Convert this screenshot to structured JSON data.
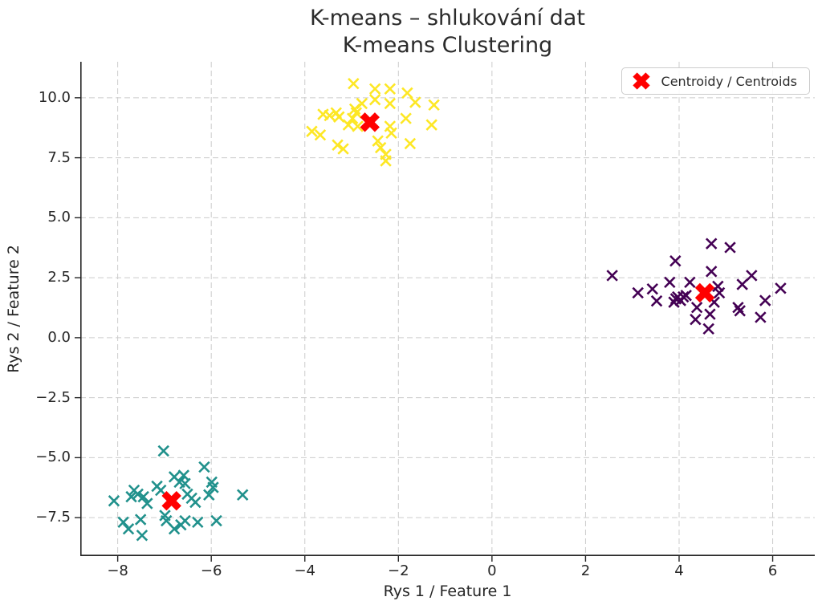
{
  "title": {
    "line1": "K-means – shlukování dat",
    "line2": "K-means Clustering"
  },
  "axes": {
    "x_label": "Rys 1 / Feature 1",
    "y_label": "Rys 2 / Feature 2"
  },
  "legend": {
    "label": "Centroidy / Centroids",
    "marker": "red-thick-x"
  },
  "chart_data": {
    "type": "scatter",
    "title": "K-means – shlukování dat\nK-means Clustering",
    "xlabel": "Rys 1 / Feature 1",
    "ylabel": "Rys 2 / Feature 2",
    "xlim": [
      -8.8,
      6.9
    ],
    "ylim": [
      -9.1,
      11.5
    ],
    "x_ticks": [
      -8,
      -6,
      -4,
      -2,
      0,
      2,
      4,
      6
    ],
    "x_tick_labels": [
      "−8",
      "−6",
      "−4",
      "−2",
      "0",
      "2",
      "4",
      "6"
    ],
    "y_ticks": [
      10.0,
      7.5,
      5.0,
      2.5,
      0.0,
      -2.5,
      -5.0,
      -7.5
    ],
    "y_tick_labels": [
      "10.0",
      "7.5",
      "5.0",
      "2.5",
      "0.0",
      "−2.5",
      "−5.0",
      "−7.5"
    ],
    "grid": "dashed",
    "legend_position": "upper right",
    "marker": "x",
    "style": {
      "background": "#ffffff",
      "grid_color": "#cccccc",
      "axis_color": "#262626",
      "text_color": "#262626"
    },
    "series": [
      {
        "name": "cluster-yellow",
        "color": "#fde725",
        "points": [
          [
            -2.96,
            10.59
          ],
          [
            -2.5,
            10.37
          ],
          [
            -2.18,
            10.37
          ],
          [
            -2.78,
            9.76
          ],
          [
            -2.5,
            9.92
          ],
          [
            -2.18,
            9.76
          ],
          [
            -1.81,
            10.2
          ],
          [
            -1.64,
            9.81
          ],
          [
            -1.24,
            9.7
          ],
          [
            -3.47,
            9.26
          ],
          [
            -3.61,
            9.31
          ],
          [
            -3.33,
            9.37
          ],
          [
            -3.27,
            9.2
          ],
          [
            -2.93,
            9.53
          ],
          [
            -2.9,
            9.37
          ],
          [
            -2.98,
            9.14
          ],
          [
            -3.07,
            8.87
          ],
          [
            -2.87,
            8.81
          ],
          [
            -3.85,
            8.6
          ],
          [
            -3.67,
            8.45
          ],
          [
            -2.18,
            8.81
          ],
          [
            -2.15,
            8.53
          ],
          [
            -1.84,
            9.14
          ],
          [
            -1.75,
            8.09
          ],
          [
            -1.29,
            8.87
          ],
          [
            -3.3,
            8.03
          ],
          [
            -3.18,
            7.87
          ],
          [
            -2.44,
            8.2
          ],
          [
            -2.38,
            7.92
          ],
          [
            -2.27,
            7.64
          ],
          [
            -2.27,
            7.37
          ]
        ]
      },
      {
        "name": "cluster-purple",
        "color": "#440154",
        "points": [
          [
            4.69,
            3.92
          ],
          [
            5.09,
            3.76
          ],
          [
            3.92,
            3.2
          ],
          [
            2.57,
            2.59
          ],
          [
            4.69,
            2.76
          ],
          [
            3.8,
            2.31
          ],
          [
            4.23,
            2.31
          ],
          [
            5.55,
            2.59
          ],
          [
            5.35,
            2.22
          ],
          [
            3.12,
            1.87
          ],
          [
            3.43,
            2.03
          ],
          [
            3.52,
            1.53
          ],
          [
            3.89,
            1.48
          ],
          [
            3.97,
            1.7
          ],
          [
            4.09,
            1.7
          ],
          [
            4.15,
            1.76
          ],
          [
            4.03,
            1.55
          ],
          [
            4.83,
            2.14
          ],
          [
            4.86,
            1.87
          ],
          [
            4.75,
            1.48
          ],
          [
            4.38,
            1.26
          ],
          [
            4.35,
            0.76
          ],
          [
            4.66,
            0.98
          ],
          [
            4.63,
            0.37
          ],
          [
            5.26,
            1.26
          ],
          [
            5.3,
            1.12
          ],
          [
            5.84,
            1.55
          ],
          [
            5.74,
            0.85
          ],
          [
            6.17,
            2.06
          ],
          [
            3.93,
            1.62
          ]
        ]
      },
      {
        "name": "cluster-teal",
        "color": "#21918c",
        "points": [
          [
            -7.02,
            -4.72
          ],
          [
            -6.15,
            -5.39
          ],
          [
            -6.79,
            -5.8
          ],
          [
            -6.59,
            -5.74
          ],
          [
            -6.68,
            -6.02
          ],
          [
            -6.56,
            -6.08
          ],
          [
            -5.99,
            -6.02
          ],
          [
            -5.96,
            -6.24
          ],
          [
            -7.65,
            -6.36
          ],
          [
            -7.57,
            -6.52
          ],
          [
            -7.71,
            -6.63
          ],
          [
            -7.45,
            -6.63
          ],
          [
            -7.16,
            -6.19
          ],
          [
            -7.08,
            -6.36
          ],
          [
            -8.08,
            -6.8
          ],
          [
            -7.37,
            -6.91
          ],
          [
            -6.51,
            -6.52
          ],
          [
            -6.42,
            -6.69
          ],
          [
            -6.34,
            -6.86
          ],
          [
            -6.05,
            -6.55
          ],
          [
            -5.33,
            -6.55
          ],
          [
            -6.99,
            -7.41
          ],
          [
            -6.96,
            -7.63
          ],
          [
            -7.88,
            -7.69
          ],
          [
            -7.77,
            -7.97
          ],
          [
            -7.51,
            -7.58
          ],
          [
            -7.48,
            -8.24
          ],
          [
            -6.79,
            -7.97
          ],
          [
            -6.65,
            -7.8
          ],
          [
            -6.56,
            -7.63
          ],
          [
            -6.29,
            -7.69
          ],
          [
            -5.89,
            -7.63
          ]
        ]
      }
    ],
    "centroids": {
      "name": "Centroidy / Centroids",
      "marker": "X",
      "color": "#ff0000",
      "points": [
        [
          -2.61,
          8.98
        ],
        [
          4.55,
          1.87
        ],
        [
          -6.85,
          -6.8
        ]
      ]
    }
  }
}
